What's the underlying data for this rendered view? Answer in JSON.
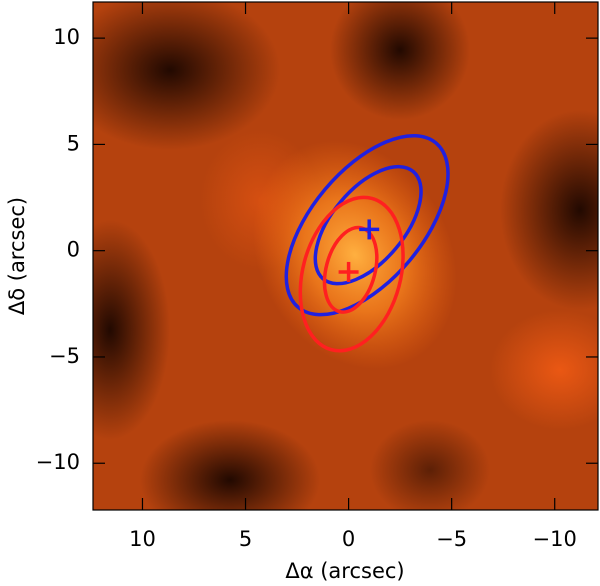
{
  "chart_data": {
    "type": "contour-image",
    "xlabel": "Δα (arcsec)",
    "ylabel": "Δδ (arcsec)",
    "xlim": [
      12.4,
      -12.1
    ],
    "ylim": [
      -12.2,
      11.7
    ],
    "xticks": [
      10,
      5,
      0,
      {
        "value": -5,
        "label": "−5"
      },
      {
        "value": -10,
        "label": "−10"
      }
    ],
    "yticks": [
      {
        "value": -10,
        "label": "−10"
      },
      {
        "value": -5,
        "label": "−5"
      },
      0,
      5,
      10
    ],
    "contours": [
      {
        "color": "#2020e0",
        "center": [
          -0.9,
          1.2
        ],
        "axes": [
          5.2,
          2.6
        ],
        "angle": 50
      },
      {
        "color": "#2020e0",
        "center": [
          -0.95,
          1.2
        ],
        "axes": [
          3.4,
          1.7
        ],
        "angle": 50
      },
      {
        "color": "#ff2020",
        "center": [
          -0.15,
          -1.1
        ],
        "axes": [
          3.8,
          2.3
        ],
        "angle": 75
      },
      {
        "color": "#ff2020",
        "center": [
          -0.1,
          -0.9
        ],
        "axes": [
          2.1,
          1.15
        ],
        "angle": 75
      }
    ],
    "markers": [
      {
        "color": "#2020e0",
        "x": -1.0,
        "y": 1.0
      },
      {
        "color": "#ff2020",
        "x": 0.0,
        "y": -1.0
      }
    ]
  }
}
